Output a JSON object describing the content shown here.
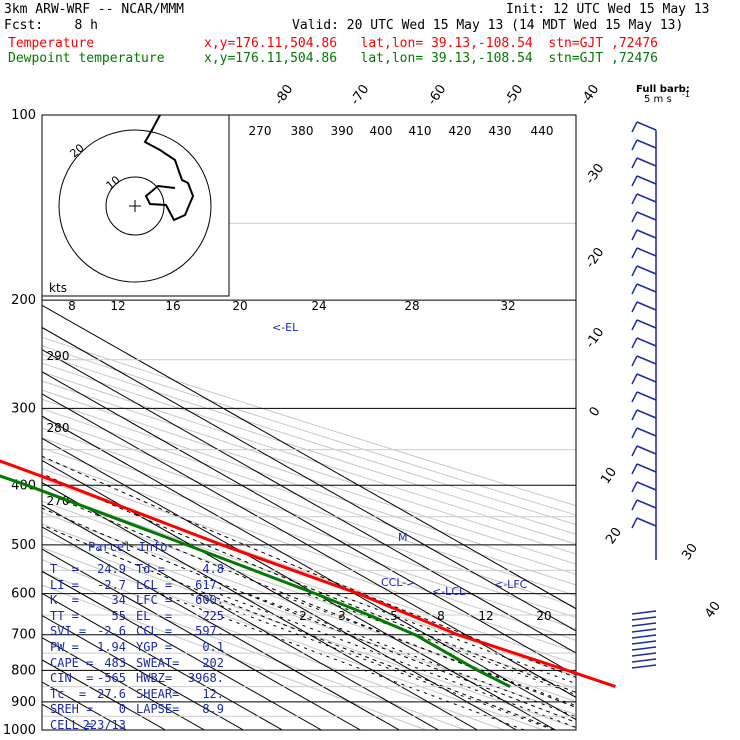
{
  "header": {
    "model": "3km ARW-WRF -- NCAR/MMM",
    "init": "Init: 12 UTC Wed 15 May 13",
    "fcst": "Fcst:    8 h",
    "valid": "Valid: 20 UTC Wed 15 May 13 (14 MDT Wed 15 May 13)",
    "temp_label": "Temperature",
    "temp_info": "x,y=176.11,504.86   lat,lon= 39.13,-108.54  stn=GJT ,72476",
    "dew_label": "Dewpoint temperature",
    "dew_info": "x,y=176.11,504.86   lat,lon= 39.13,-108.54  stn=GJT ,72476"
  },
  "colors": {
    "temperature": "#ff0000",
    "dewpoint": "#007a00",
    "grid": "#000000",
    "parcel_text": "#1a2aa8",
    "barbs": "#1a2aa8",
    "theta_lines": "#c8c8c8"
  },
  "wind_key": {
    "title": "Full barb:",
    "value": "5 m s",
    "exp": "-1"
  },
  "parcel_info": {
    "title": "Parcel Info",
    "rows": [
      [
        "T  =",
        "24.9",
        "Td =",
        "4.8"
      ],
      [
        "LI =",
        "-2.7",
        "LCL =",
        "617."
      ],
      [
        "K  =",
        "34",
        "LFC =",
        "600."
      ],
      [
        "TT =",
        "55",
        "EL  =",
        "225"
      ],
      [
        "SVI =",
        "-2.6",
        "CCL =",
        "597."
      ],
      [
        "PW =",
        "1.94",
        "YGP =",
        "0.1"
      ],
      [
        "CAPE =",
        "483",
        "SWEAT=",
        "202"
      ],
      [
        "CIN  =",
        "-565",
        "HWBZ=",
        "3968."
      ],
      [
        "Tc  =",
        "27.6",
        "SHEAR=",
        "12."
      ],
      [
        "SREH =",
        "0",
        "LAPSE=",
        "8.9"
      ],
      [
        "CELL =",
        "223/13",
        "",
        ""
      ]
    ]
  },
  "chart_data": {
    "type": "line",
    "pressure_levels": [
      100,
      200,
      300,
      400,
      500,
      600,
      700,
      800,
      900,
      1000
    ],
    "pressure_labels": [
      "100",
      "200",
      "300",
      "400",
      "500",
      "600",
      "700",
      "800",
      "900",
      "1000"
    ],
    "isotherm_labels": [
      "-80",
      "-70",
      "-60",
      "-50",
      "-40",
      "-30",
      "-20",
      "-10",
      "0",
      "10",
      "20",
      "30",
      "40"
    ],
    "theta_labels": [
      "270",
      "380",
      "390",
      "400",
      "410",
      "420",
      "430",
      "440"
    ],
    "theta_low_labels": [
      "290",
      "280",
      "270"
    ],
    "mixing_ratio_labels": [
      "2",
      "3",
      "5",
      "8",
      "12",
      "20"
    ],
    "hodo_speed_labels": [
      "8",
      "12",
      "16",
      "20",
      "24",
      "28",
      "32"
    ],
    "hodo_unit": "kts",
    "hodo_ring_labels": [
      "20",
      "10"
    ],
    "annotations": [
      "<-EL",
      "CCL->",
      "<-LCL",
      "<-LFC",
      "M"
    ],
    "series": [
      {
        "name": "Temperature",
        "points": [
          [
            100,
            -52
          ],
          [
            150,
            -52
          ],
          [
            200,
            -53
          ],
          [
            225,
            -55
          ],
          [
            250,
            -53
          ],
          [
            300,
            -44
          ],
          [
            400,
            -25
          ],
          [
            500,
            -12
          ],
          [
            600,
            1
          ],
          [
            700,
            8
          ],
          [
            800,
            20
          ],
          [
            850,
            25
          ]
        ]
      },
      {
        "name": "Dewpoint temperature",
        "points": [
          [
            100,
            -75
          ],
          [
            150,
            -75
          ],
          [
            175,
            -78
          ],
          [
            200,
            -76
          ],
          [
            250,
            -73
          ],
          [
            300,
            -58
          ],
          [
            400,
            -35
          ],
          [
            500,
            -21
          ],
          [
            600,
            -10
          ],
          [
            650,
            -6
          ],
          [
            700,
            -3
          ],
          [
            800,
            -3
          ],
          [
            850,
            -2
          ]
        ]
      }
    ]
  }
}
